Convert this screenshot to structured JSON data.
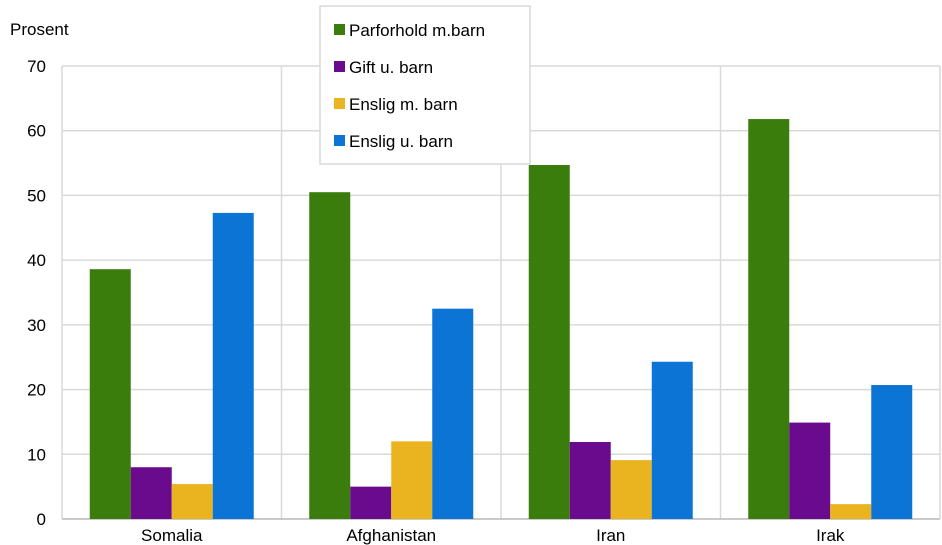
{
  "chart_data": {
    "type": "bar",
    "ylabel": "Prosent",
    "categories": [
      "Somalia",
      "Afghanistan",
      "Iran",
      "Irak"
    ],
    "series": [
      {
        "name": "Parforhold m.barn",
        "color": "#3a7d0c",
        "values": [
          38.6,
          50.5,
          54.7,
          61.8
        ]
      },
      {
        "name": "Gift u. barn",
        "color": "#6a0a8c",
        "values": [
          8.0,
          5.0,
          11.9,
          14.9
        ]
      },
      {
        "name": "Enslig m. barn",
        "color": "#eab421",
        "values": [
          5.4,
          12.0,
          9.1,
          2.3
        ]
      },
      {
        "name": "Enslig u. barn",
        "color": "#0b74d4",
        "values": [
          47.3,
          32.5,
          24.3,
          20.7
        ]
      }
    ],
    "ylim": [
      0,
      70
    ],
    "yticks": [
      0,
      10,
      20,
      30,
      40,
      50,
      60,
      70
    ],
    "grid": true,
    "legend_position": "top-center"
  }
}
